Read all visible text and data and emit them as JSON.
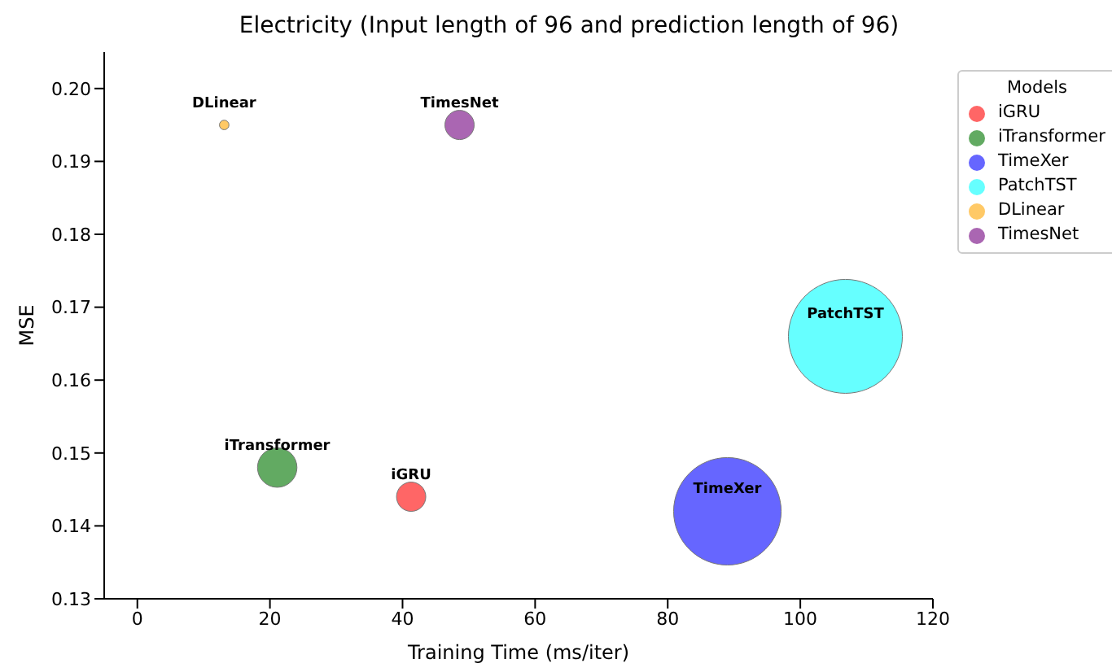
{
  "chart_data": {
    "type": "bubble",
    "title": "Electricity (Input length of 96 and prediction length of 96)",
    "xlabel": "Training Time (ms/iter)",
    "ylabel": "MSE",
    "legend_title": "Models",
    "legend": "top right",
    "grid": false,
    "xlim": [
      -5,
      120
    ],
    "xticks": [
      0,
      20,
      40,
      60,
      80,
      100,
      120
    ],
    "ylim": [
      0.13,
      0.205
    ],
    "yticks": [
      0.13,
      0.14,
      0.15,
      0.16,
      0.17,
      0.18,
      0.19,
      {
        "value": 0.2,
        "label": "0.20"
      }
    ],
    "series": [
      {
        "name": "iGRU",
        "color": "#ff6666",
        "x": [
          41.3
        ],
        "values": [
          0.144
        ],
        "sizes": [
          0.066
        ]
      },
      {
        "name": "iTransformer",
        "color": "#62aa62",
        "x": [
          21.1
        ],
        "values": [
          0.148
        ],
        "sizes": [
          0.12
        ]
      },
      {
        "name": "TimeXer",
        "color": "#6666ff",
        "x": [
          89
        ],
        "values": [
          0.142
        ],
        "sizes": [
          0.89
        ]
      },
      {
        "name": "PatchTST",
        "color": "#66ffff",
        "x": [
          106.8
        ],
        "values": [
          0.166
        ],
        "sizes": [
          1
        ]
      },
      {
        "name": "DLinear",
        "color": "#ffc966",
        "x": [
          13.1
        ],
        "values": [
          0.195
        ],
        "sizes": [
          0.007
        ]
      },
      {
        "name": "TimesNet",
        "color": "#aa66b2",
        "x": [
          48.6
        ],
        "values": [
          0.195
        ],
        "sizes": [
          0.066
        ]
      }
    ]
  }
}
